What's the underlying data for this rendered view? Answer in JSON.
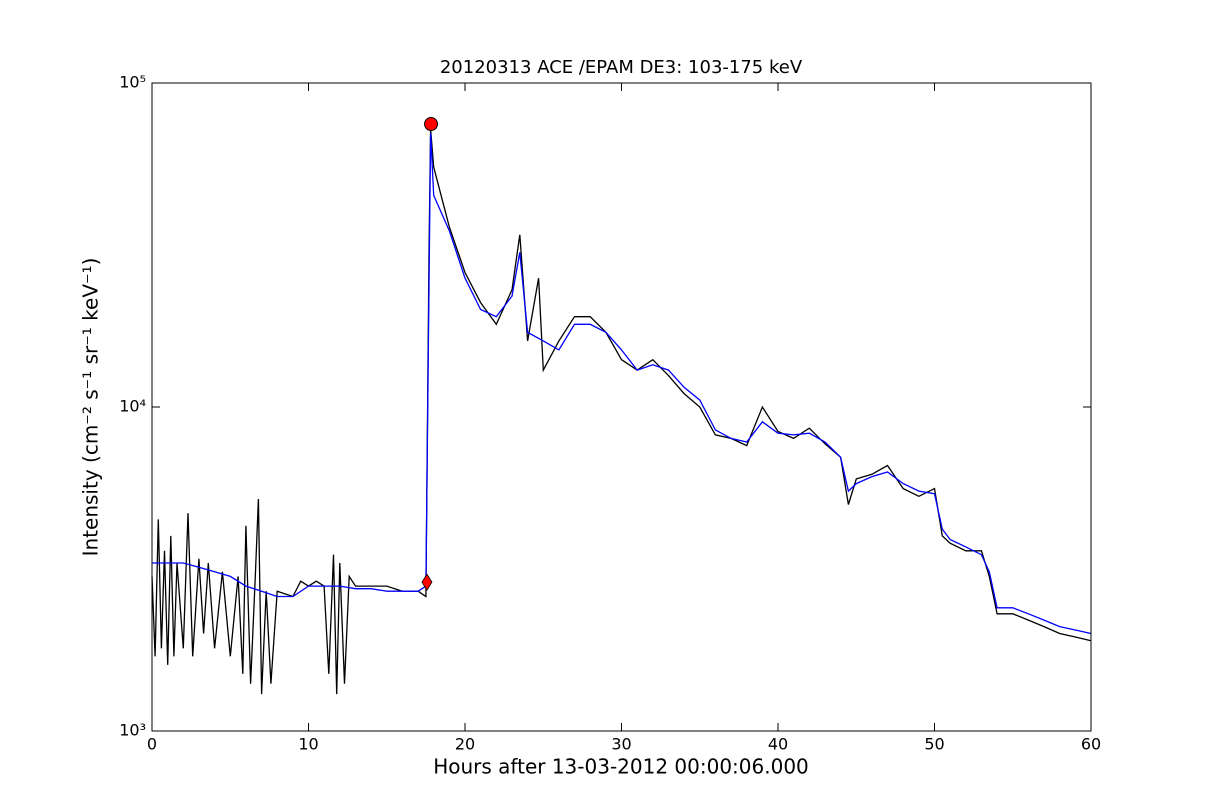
{
  "chart_data": {
    "type": "line",
    "title": "20120313 ACE /EPAM DE3: 103-175 keV",
    "x_label": "Hours after 13-03-2012 00:00:06.000",
    "y_label": "Intensity (cm⁻² s⁻¹ sr⁻¹ keV⁻¹)",
    "log_y": true,
    "xlim": [
      0,
      60
    ],
    "xticks": [
      0,
      10,
      20,
      30,
      40,
      50,
      60
    ],
    "ylim": [
      1000,
      100000
    ],
    "yticks": [
      {
        "value": 1000,
        "label": "10³"
      },
      {
        "value": 10000,
        "label": "10⁴"
      },
      {
        "value": 100000,
        "label": "10⁵"
      }
    ],
    "series": [
      {
        "color": "#000000",
        "x": [
          0,
          0.2,
          0.4,
          0.6,
          0.8,
          1,
          1.2,
          1.4,
          1.6,
          2,
          2.3,
          2.6,
          3,
          3.3,
          3.6,
          4,
          4.5,
          5,
          5.5,
          5.8,
          6,
          6.3,
          6.6,
          6.8,
          7,
          7.3,
          7.6,
          8,
          9,
          9.5,
          10,
          10.5,
          11,
          11.3,
          11.6,
          11.8,
          12,
          12.3,
          12.6,
          13,
          14,
          15,
          16,
          17,
          17.5,
          17.7,
          17.8,
          18,
          19,
          20,
          21,
          22,
          23,
          23.5,
          24,
          24.7,
          25,
          26,
          27,
          28,
          29,
          30,
          31,
          32,
          33,
          34,
          35,
          36,
          37,
          38,
          39,
          40,
          41,
          42,
          43,
          44,
          44.5,
          45,
          46,
          47,
          48,
          49,
          50,
          50.5,
          51,
          52,
          53,
          53.5,
          54,
          55,
          56,
          57,
          58,
          59,
          60
        ],
        "values": [
          3000,
          1700,
          4500,
          1800,
          3600,
          1600,
          4000,
          1700,
          3300,
          1800,
          4700,
          1700,
          3400,
          2000,
          3300,
          1800,
          3100,
          1700,
          3000,
          1500,
          4300,
          1400,
          3000,
          5200,
          1300,
          2700,
          1400,
          2700,
          2600,
          2900,
          2800,
          2900,
          2800,
          1500,
          3500,
          1300,
          3300,
          1400,
          3000,
          2800,
          2800,
          2800,
          2700,
          2700,
          2600,
          30000,
          72000,
          55000,
          36000,
          26000,
          21000,
          18000,
          23000,
          34000,
          16000,
          25000,
          13000,
          16000,
          19000,
          19000,
          17000,
          14000,
          13000,
          14000,
          12500,
          11000,
          10000,
          8200,
          8000,
          7600,
          10000,
          8400,
          8000,
          8600,
          7700,
          7000,
          5000,
          6000,
          6200,
          6600,
          5600,
          5300,
          5600,
          4000,
          3800,
          3600,
          3600,
          3000,
          2300,
          2300,
          2200,
          2100,
          2000,
          1950,
          1900
        ]
      },
      {
        "color": "#0000ff",
        "x": [
          0,
          1,
          2,
          3,
          4,
          5,
          6,
          7,
          8,
          9,
          10,
          11,
          12,
          13,
          14,
          15,
          16,
          17,
          17.5,
          17.8,
          18,
          19,
          20,
          21,
          22,
          23,
          23.5,
          24,
          25,
          26,
          27,
          28,
          29,
          30,
          31,
          32,
          33,
          34,
          35,
          36,
          37,
          38,
          39,
          40,
          41,
          42,
          43,
          44,
          44.5,
          45,
          46,
          47,
          48,
          49,
          50,
          50.5,
          51,
          52,
          53,
          53.5,
          54,
          55,
          56,
          57,
          58,
          59,
          60
        ],
        "values": [
          3300,
          3300,
          3300,
          3200,
          3100,
          3000,
          2800,
          2700,
          2600,
          2600,
          2800,
          2800,
          2800,
          2750,
          2750,
          2700,
          2700,
          2700,
          2800,
          70000,
          45000,
          35000,
          25000,
          20000,
          19000,
          22000,
          30000,
          17000,
          16000,
          15000,
          18000,
          18000,
          17000,
          15000,
          13000,
          13500,
          13000,
          11500,
          10500,
          8500,
          8000,
          7800,
          9000,
          8300,
          8200,
          8300,
          7800,
          7000,
          5500,
          5800,
          6100,
          6300,
          5800,
          5500,
          5400,
          4200,
          3900,
          3700,
          3500,
          3100,
          2400,
          2400,
          2300,
          2200,
          2100,
          2050,
          2000
        ]
      }
    ],
    "points": [
      {
        "x": 17.83,
        "y": 74700,
        "color": "#ff0000",
        "marker": "circle"
      },
      {
        "x": 17.57,
        "y": 2880,
        "color": "#ff0000",
        "marker": "diamond"
      }
    ]
  }
}
